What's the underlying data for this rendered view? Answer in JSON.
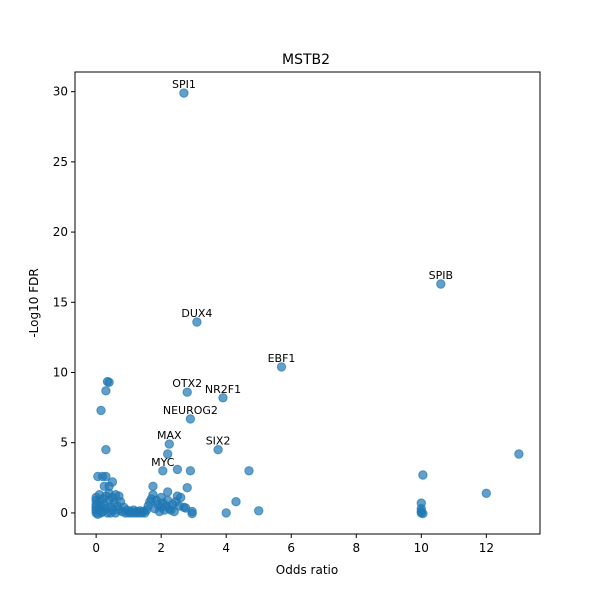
{
  "chart_data": {
    "type": "scatter",
    "title": "MSTB2",
    "xlabel": "Odds ratio",
    "ylabel": "-Log10 FDR",
    "xlim": [
      -0.65,
      13.65
    ],
    "ylim": [
      -1.5,
      31.4
    ],
    "xticks": [
      0,
      2,
      4,
      6,
      8,
      10,
      12
    ],
    "yticks": [
      0,
      5,
      10,
      15,
      20,
      25,
      30
    ],
    "grid": false,
    "marker_color": "#1f77b4",
    "labeled_points": [
      {
        "label": "SPI1",
        "x": 2.7,
        "y": 29.9
      },
      {
        "label": "SPIB",
        "x": 10.6,
        "y": 16.3
      },
      {
        "label": "DUX4",
        "x": 3.1,
        "y": 13.6
      },
      {
        "label": "EBF1",
        "x": 5.7,
        "y": 10.4
      },
      {
        "label": "OTX2",
        "x": 2.8,
        "y": 8.6
      },
      {
        "label": "NR2F1",
        "x": 3.9,
        "y": 8.2
      },
      {
        "label": "NEUROG2",
        "x": 2.9,
        "y": 6.7
      },
      {
        "label": "MAX",
        "x": 2.25,
        "y": 4.9
      },
      {
        "label": "SIX2",
        "x": 3.75,
        "y": 4.5
      },
      {
        "label": "MYC",
        "x": 2.05,
        "y": 3.0
      }
    ],
    "other_points": [
      {
        "x": 0.35,
        "y": 9.35
      },
      {
        "x": 0.4,
        "y": 9.3
      },
      {
        "x": 0.3,
        "y": 8.7
      },
      {
        "x": 0.15,
        "y": 7.3
      },
      {
        "x": 0.3,
        "y": 4.5
      },
      {
        "x": 2.2,
        "y": 4.2
      },
      {
        "x": 13.0,
        "y": 4.2
      },
      {
        "x": 2.5,
        "y": 3.1
      },
      {
        "x": 2.9,
        "y": 3.0
      },
      {
        "x": 4.7,
        "y": 3.0
      },
      {
        "x": 0.05,
        "y": 2.6
      },
      {
        "x": 0.2,
        "y": 2.6
      },
      {
        "x": 0.3,
        "y": 2.6
      },
      {
        "x": 10.05,
        "y": 2.7
      },
      {
        "x": 0.25,
        "y": 1.9
      },
      {
        "x": 0.4,
        "y": 1.9
      },
      {
        "x": 0.5,
        "y": 2.2
      },
      {
        "x": 1.75,
        "y": 1.9
      },
      {
        "x": 2.8,
        "y": 1.8
      },
      {
        "x": 2.2,
        "y": 1.5
      },
      {
        "x": 12.0,
        "y": 1.4
      },
      {
        "x": 2.5,
        "y": 1.2
      },
      {
        "x": 2.6,
        "y": 1.1
      },
      {
        "x": 4.3,
        "y": 0.8
      },
      {
        "x": 10.0,
        "y": 0.7
      },
      {
        "x": 2.7,
        "y": 0.4
      },
      {
        "x": 2.75,
        "y": 0.35
      },
      {
        "x": 2.95,
        "y": 0.1
      },
      {
        "x": 2.95,
        "y": -0.05
      },
      {
        "x": 4.0,
        "y": 0.0
      },
      {
        "x": 5.0,
        "y": 0.15
      },
      {
        "x": 2.3,
        "y": 0.2
      },
      {
        "x": 10.0,
        "y": 0.3
      },
      {
        "x": 10.0,
        "y": 0.1
      },
      {
        "x": 10.0,
        "y": 0.0
      },
      {
        "x": 10.05,
        "y": -0.05
      },
      {
        "x": 0.0,
        "y": 1.1
      },
      {
        "x": 0.0,
        "y": 0.9
      },
      {
        "x": 0.0,
        "y": 0.6
      },
      {
        "x": 0.0,
        "y": 0.4
      },
      {
        "x": 0.0,
        "y": 0.2
      },
      {
        "x": 0.0,
        "y": 0.0
      },
      {
        "x": 0.05,
        "y": -0.1
      },
      {
        "x": 0.1,
        "y": 0.3
      },
      {
        "x": 0.1,
        "y": 0.8
      },
      {
        "x": 0.15,
        "y": 0.5
      },
      {
        "x": 0.2,
        "y": 1.0
      },
      {
        "x": 0.2,
        "y": 0.1
      },
      {
        "x": 0.25,
        "y": 0.6
      },
      {
        "x": 0.3,
        "y": 1.2
      },
      {
        "x": 0.3,
        "y": 0.3
      },
      {
        "x": 0.35,
        "y": 0.0
      },
      {
        "x": 0.4,
        "y": 0.9
      },
      {
        "x": 0.45,
        "y": 0.4
      },
      {
        "x": 0.5,
        "y": 1.1
      },
      {
        "x": 0.5,
        "y": 0.2
      },
      {
        "x": 0.55,
        "y": 0.7
      },
      {
        "x": 0.6,
        "y": 0.0
      },
      {
        "x": 0.65,
        "y": 0.5
      },
      {
        "x": 0.7,
        "y": 1.2
      },
      {
        "x": 0.7,
        "y": 0.2
      },
      {
        "x": 0.75,
        "y": 0.8
      },
      {
        "x": 0.8,
        "y": 0.1
      },
      {
        "x": 0.85,
        "y": 0.4
      },
      {
        "x": 0.9,
        "y": 0.0
      },
      {
        "x": 0.95,
        "y": 0.2
      },
      {
        "x": 1.0,
        "y": 0.0
      },
      {
        "x": 1.05,
        "y": 0.1
      },
      {
        "x": 1.1,
        "y": 0.0
      },
      {
        "x": 1.15,
        "y": 0.2
      },
      {
        "x": 1.2,
        "y": 0.0
      },
      {
        "x": 1.25,
        "y": 0.1
      },
      {
        "x": 1.3,
        "y": 0.0
      },
      {
        "x": 1.35,
        "y": 0.15
      },
      {
        "x": 1.4,
        "y": 0.0
      },
      {
        "x": 1.45,
        "y": 0.1
      },
      {
        "x": 1.5,
        "y": 0.0
      },
      {
        "x": 1.55,
        "y": 0.2
      },
      {
        "x": 1.6,
        "y": 0.5
      },
      {
        "x": 1.65,
        "y": 0.8
      },
      {
        "x": 1.7,
        "y": 1.0
      },
      {
        "x": 1.75,
        "y": 1.3
      },
      {
        "x": 1.8,
        "y": 0.3
      },
      {
        "x": 1.85,
        "y": 0.9
      },
      {
        "x": 1.9,
        "y": 0.6
      },
      {
        "x": 1.95,
        "y": 0.1
      },
      {
        "x": 2.0,
        "y": 0.4
      },
      {
        "x": 2.0,
        "y": 1.1
      },
      {
        "x": 2.05,
        "y": 0.7
      },
      {
        "x": 2.1,
        "y": 0.2
      },
      {
        "x": 2.15,
        "y": 0.5
      },
      {
        "x": 2.2,
        "y": 0.9
      },
      {
        "x": 2.25,
        "y": 0.3
      },
      {
        "x": 2.35,
        "y": 0.6
      },
      {
        "x": 2.4,
        "y": 0.1
      },
      {
        "x": 2.45,
        "y": 0.8
      },
      {
        "x": 2.55,
        "y": 0.5
      },
      {
        "x": 0.1,
        "y": 1.3
      },
      {
        "x": 0.4,
        "y": 1.4
      },
      {
        "x": 0.6,
        "y": 1.3
      },
      {
        "x": 0.15,
        "y": 0.0
      },
      {
        "x": 0.45,
        "y": 0.0
      }
    ]
  }
}
